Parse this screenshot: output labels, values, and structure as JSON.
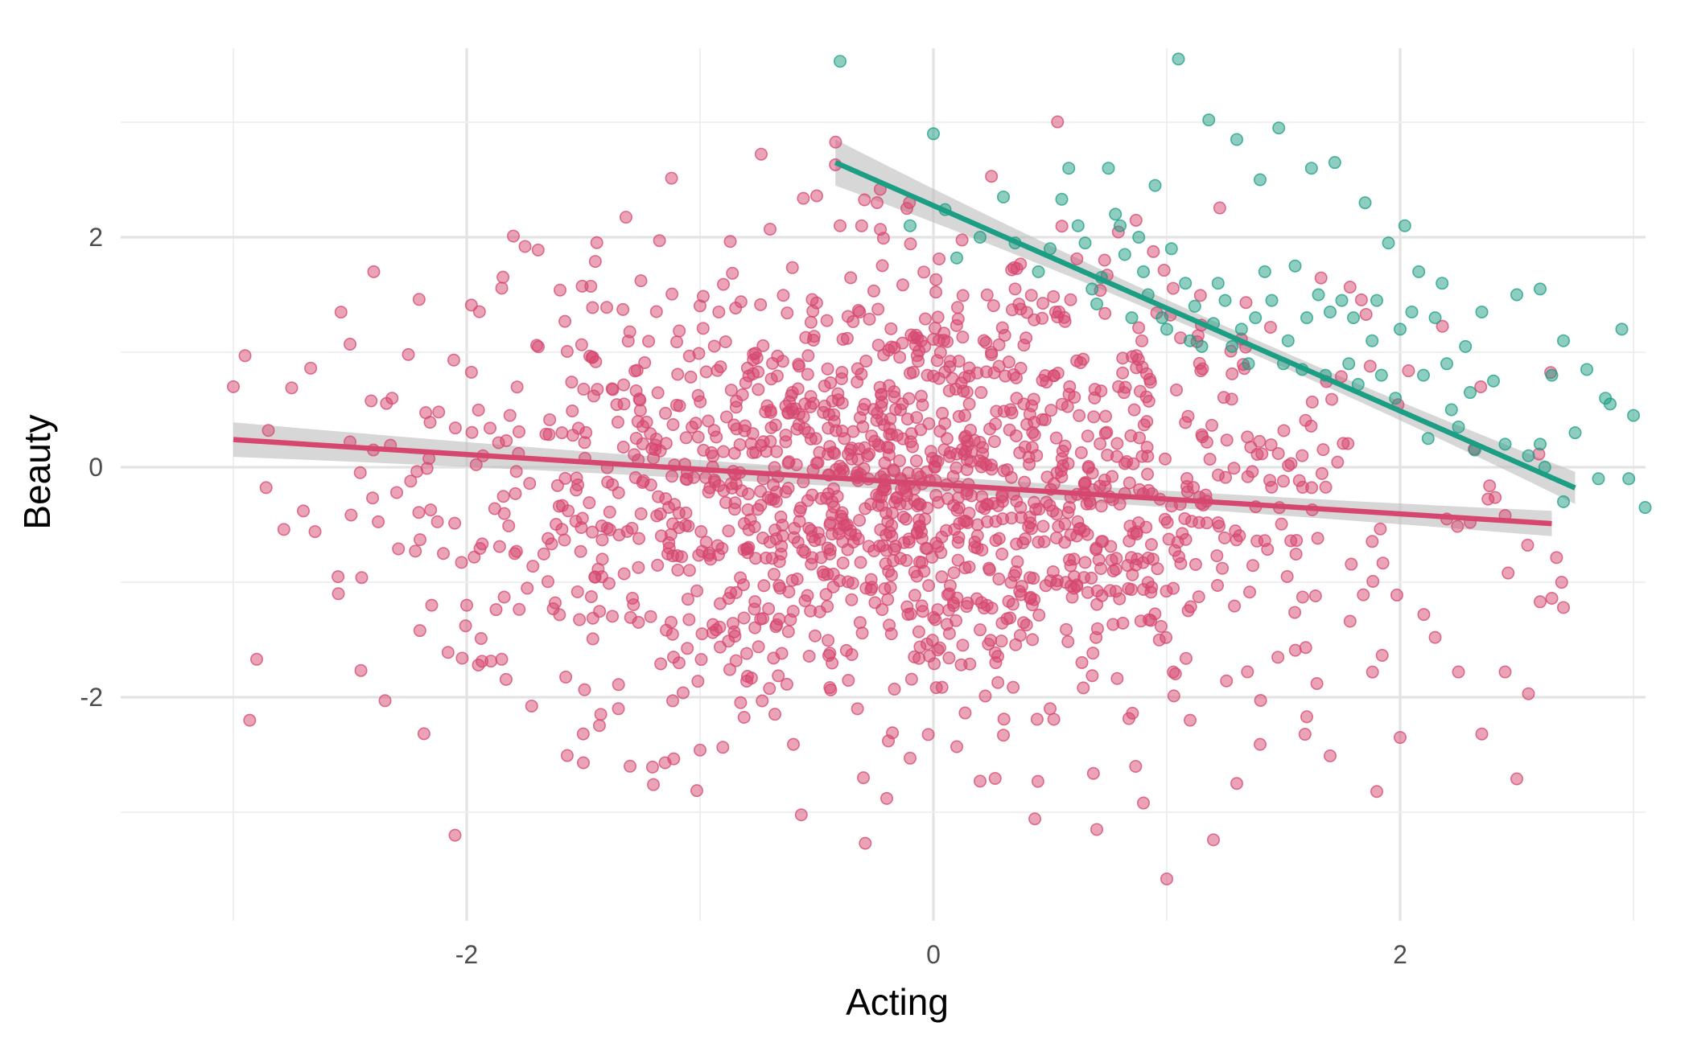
{
  "chart_data": {
    "type": "scatter",
    "title": "",
    "xlabel": "Acting",
    "ylabel": "Beauty",
    "xlim": [
      -3.2,
      3.05
    ],
    "ylim": [
      -3.95,
      3.75
    ],
    "x_ticks": [
      -2,
      0,
      2
    ],
    "x_tick_labels": [
      "-2",
      "0",
      "2"
    ],
    "y_ticks": [
      -2,
      0,
      2
    ],
    "y_tick_labels": [
      "-2",
      "0",
      "2"
    ],
    "grid": true,
    "legend": "none",
    "colors": {
      "pink": "#d6476f",
      "teal": "#1b9e83",
      "band": "#bdbdbd"
    },
    "pink_cloud": {
      "n": 1500,
      "x_mean": -0.1,
      "x_sd": 0.95,
      "x_range": [
        -3.0,
        2.7
      ],
      "y_mean": -0.15,
      "y_sd": 0.95
    },
    "series": [
      {
        "color": "#d6476f",
        "points": [
          [
            -3.0,
            0.7
          ],
          [
            -2.95,
            0.97
          ],
          [
            -2.93,
            -2.2
          ],
          [
            -2.9,
            -1.67
          ],
          [
            -2.85,
            0.32
          ],
          [
            -2.75,
            0.69
          ],
          [
            -2.7,
            -0.38
          ],
          [
            -2.65,
            -0.56
          ],
          [
            -2.55,
            -1.1
          ],
          [
            -2.5,
            0.22
          ],
          [
            -2.5,
            1.07
          ],
          [
            -2.45,
            -0.96
          ],
          [
            -2.4,
            0.15
          ],
          [
            -2.35,
            -2.03
          ],
          [
            -2.32,
            0.6
          ],
          [
            -2.3,
            -0.22
          ],
          [
            -2.25,
            0.98
          ],
          [
            -2.22,
            -0.73
          ],
          [
            -2.2,
            -0.63
          ],
          [
            -2.17,
            -0.01
          ],
          [
            -2.15,
            -1.2
          ],
          [
            -2.12,
            0.48
          ],
          [
            -2.1,
            -0.75
          ],
          [
            -2.08,
            -1.61
          ],
          [
            -2.05,
            -3.2
          ],
          [
            -2.0,
            -1.2
          ],
          [
            -1.98,
            1.41
          ],
          [
            -1.95,
            -1.72
          ],
          [
            -1.9,
            0.34
          ],
          [
            -1.88,
            -0.36
          ],
          [
            -1.85,
            -1.67
          ],
          [
            -1.82,
            -0.51
          ],
          [
            -1.8,
            2.01
          ],
          [
            -1.75,
            1.92
          ],
          [
            -1.7,
            1.06
          ],
          [
            -1.6,
            1.54
          ],
          [
            -1.5,
            -2.57
          ],
          [
            -1.4,
            1.39
          ],
          [
            -1.35,
            -2.1
          ],
          [
            -1.3,
            -2.6
          ],
          [
            -1.2,
            -2.76
          ],
          [
            -1.15,
            -2.57
          ],
          [
            -1.1,
            1.09
          ],
          [
            -1.0,
            -2.46
          ],
          [
            -0.9,
            1.59
          ],
          [
            -0.8,
            -1.86
          ],
          [
            -0.7,
            2.07
          ],
          [
            -0.6,
            -2.41
          ],
          [
            -0.5,
            2.36
          ],
          [
            -0.42,
            2.63
          ],
          [
            -0.4,
            2.1
          ],
          [
            -0.3,
            -2.7
          ],
          [
            -0.2,
            -2.88
          ],
          [
            -0.1,
            -2.53
          ],
          [
            0.1,
            -2.43
          ],
          [
            0.2,
            -2.73
          ],
          [
            0.3,
            -2.33
          ],
          [
            0.5,
            -2.1
          ],
          [
            0.7,
            -3.15
          ],
          [
            0.9,
            -2.92
          ],
          [
            1.0,
            -3.58
          ],
          [
            1.1,
            -2.2
          ],
          [
            1.2,
            -3.24
          ],
          [
            1.3,
            -2.75
          ],
          [
            1.4,
            -2.41
          ],
          [
            1.6,
            -2.17
          ],
          [
            1.7,
            -2.51
          ],
          [
            1.9,
            -2.82
          ],
          [
            2.0,
            -2.35
          ],
          [
            2.15,
            -1.48
          ],
          [
            2.25,
            -1.78
          ],
          [
            2.35,
            -2.32
          ],
          [
            2.45,
            -1.78
          ],
          [
            2.5,
            -2.71
          ],
          [
            2.55,
            -1.97
          ],
          [
            2.6,
            -1.17
          ],
          [
            2.65,
            -1.14
          ],
          [
            2.7,
            -1.22
          ],
          [
            2.45,
            -0.42
          ],
          [
            2.3,
            -0.48
          ],
          [
            2.2,
            -0.45
          ]
        ],
        "fit": {
          "x": [
            -3.0,
            2.65
          ],
          "y": [
            0.24,
            -0.49
          ],
          "band_half_width": [
            0.15,
            0.07,
            0.11
          ]
        }
      },
      {
        "color": "#1b9e83",
        "points": [
          [
            -0.4,
            3.53
          ],
          [
            0.0,
            2.9
          ],
          [
            0.05,
            2.24
          ],
          [
            -0.1,
            2.1
          ],
          [
            0.1,
            1.82
          ],
          [
            0.2,
            2.0
          ],
          [
            0.3,
            2.35
          ],
          [
            0.35,
            1.95
          ],
          [
            0.45,
            1.7
          ],
          [
            0.5,
            1.9
          ],
          [
            0.55,
            2.33
          ],
          [
            0.58,
            2.6
          ],
          [
            0.62,
            2.1
          ],
          [
            0.65,
            1.95
          ],
          [
            0.68,
            1.55
          ],
          [
            0.7,
            1.42
          ],
          [
            0.72,
            1.65
          ],
          [
            0.75,
            2.6
          ],
          [
            0.78,
            2.2
          ],
          [
            0.8,
            2.1
          ],
          [
            0.82,
            1.85
          ],
          [
            0.85,
            1.3
          ],
          [
            0.88,
            2.0
          ],
          [
            0.9,
            1.7
          ],
          [
            0.92,
            1.5
          ],
          [
            0.95,
            2.45
          ],
          [
            0.98,
            1.3
          ],
          [
            1.0,
            1.2
          ],
          [
            1.02,
            1.9
          ],
          [
            1.05,
            3.55
          ],
          [
            1.08,
            1.6
          ],
          [
            1.1,
            1.1
          ],
          [
            1.12,
            1.4
          ],
          [
            1.15,
            1.05
          ],
          [
            1.18,
            3.02
          ],
          [
            1.2,
            1.25
          ],
          [
            1.22,
            1.6
          ],
          [
            1.25,
            1.45
          ],
          [
            1.28,
            1.05
          ],
          [
            1.3,
            2.85
          ],
          [
            1.32,
            1.2
          ],
          [
            1.35,
            0.9
          ],
          [
            1.38,
            1.3
          ],
          [
            1.4,
            2.5
          ],
          [
            1.42,
            1.7
          ],
          [
            1.45,
            1.45
          ],
          [
            1.48,
            2.95
          ],
          [
            1.5,
            0.9
          ],
          [
            1.52,
            1.1
          ],
          [
            1.55,
            1.75
          ],
          [
            1.58,
            0.85
          ],
          [
            1.6,
            1.3
          ],
          [
            1.62,
            2.6
          ],
          [
            1.65,
            1.5
          ],
          [
            1.68,
            0.8
          ],
          [
            1.7,
            1.35
          ],
          [
            1.72,
            2.65
          ],
          [
            1.75,
            1.45
          ],
          [
            1.78,
            0.9
          ],
          [
            1.8,
            1.3
          ],
          [
            1.82,
            0.72
          ],
          [
            1.85,
            2.3
          ],
          [
            1.88,
            1.1
          ],
          [
            1.9,
            1.45
          ],
          [
            1.92,
            0.8
          ],
          [
            1.95,
            1.95
          ],
          [
            1.98,
            0.6
          ],
          [
            2.0,
            1.2
          ],
          [
            2.02,
            2.1
          ],
          [
            2.05,
            1.35
          ],
          [
            2.08,
            1.7
          ],
          [
            2.1,
            0.8
          ],
          [
            2.12,
            0.25
          ],
          [
            2.15,
            1.3
          ],
          [
            2.18,
            1.6
          ],
          [
            2.2,
            0.9
          ],
          [
            2.22,
            0.5
          ],
          [
            2.25,
            0.35
          ],
          [
            2.28,
            1.05
          ],
          [
            2.3,
            0.65
          ],
          [
            2.32,
            0.15
          ],
          [
            2.35,
            1.35
          ],
          [
            2.4,
            0.75
          ],
          [
            2.45,
            0.2
          ],
          [
            2.5,
            1.5
          ],
          [
            2.55,
            0.1
          ],
          [
            2.6,
            1.55
          ],
          [
            2.62,
            0.0
          ],
          [
            2.65,
            0.8
          ],
          [
            2.7,
            1.1
          ],
          [
            2.75,
            0.3
          ],
          [
            2.8,
            0.85
          ],
          [
            2.85,
            -0.1
          ],
          [
            2.9,
            0.55
          ],
          [
            2.95,
            1.2
          ],
          [
            3.0,
            0.45
          ],
          [
            3.05,
            -0.35
          ],
          [
            2.88,
            0.6
          ],
          [
            2.98,
            -0.1
          ],
          [
            3.08,
            0.4
          ],
          [
            3.15,
            -0.2
          ],
          [
            2.7,
            -0.3
          ],
          [
            2.6,
            0.2
          ]
        ],
        "fit": {
          "x": [
            -0.42,
            2.75
          ],
          "y": [
            2.65,
            -0.18
          ],
          "band_half_width": [
            0.2,
            0.07,
            0.14
          ]
        }
      }
    ]
  }
}
